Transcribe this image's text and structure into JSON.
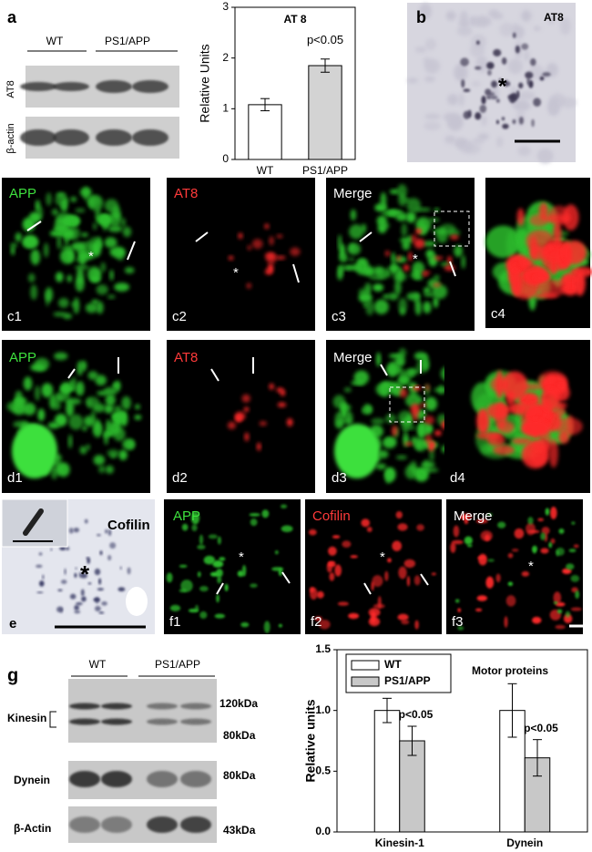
{
  "panel_a": {
    "label": "a",
    "groups": [
      "WT",
      "PS1/APP"
    ],
    "bands": [
      "AT8",
      "β-actin"
    ]
  },
  "panel_b": {
    "label": "b",
    "stain": "AT8",
    "marker": "*"
  },
  "panel_c": {
    "labels": [
      "c1",
      "c2",
      "c3",
      "c4"
    ],
    "stains": [
      "APP",
      "AT8",
      "Merge"
    ],
    "marker": "*"
  },
  "panel_d": {
    "labels": [
      "d1",
      "d2",
      "d3",
      "d4"
    ],
    "stains": [
      "APP",
      "AT8",
      "Merge"
    ]
  },
  "panel_e": {
    "label": "e",
    "stain": "Cofilin",
    "marker": "*"
  },
  "panel_f": {
    "labels": [
      "f1",
      "f2",
      "f3"
    ],
    "stains": [
      "APP",
      "Cofilin",
      "Merge"
    ],
    "marker": "*"
  },
  "panel_g": {
    "label": "g",
    "groups": [
      "WT",
      "PS1/APP"
    ],
    "bands": [
      "Kinesin",
      "Dynein",
      "β-Actin"
    ],
    "sizes": [
      "120kDa",
      "80kDa",
      "80kDa",
      "43kDa"
    ]
  },
  "chart_data": [
    {
      "type": "bar",
      "title": "AT 8",
      "ylabel": "Relative Units",
      "categories": [
        "WT",
        "PS1/APP"
      ],
      "values": [
        1.08,
        1.85
      ],
      "errors": [
        0.12,
        0.13
      ],
      "colors": [
        "#ffffff",
        "#d3d3d3"
      ],
      "annotations": [
        "p<0.05"
      ],
      "ylim": [
        0,
        3
      ],
      "yticks": [
        0,
        1,
        2,
        3
      ]
    },
    {
      "type": "bar",
      "title": "Motor proteins",
      "ylabel": "Relative units",
      "categories": [
        "Kinesin-1",
        "Dynein"
      ],
      "series": [
        {
          "name": "WT",
          "color": "#ffffff",
          "values": [
            1.0,
            1.0
          ],
          "errors": [
            0.1,
            0.22
          ]
        },
        {
          "name": "PS1/APP",
          "color": "#c8c8c8",
          "values": [
            0.75,
            0.61
          ],
          "errors": [
            0.12,
            0.15
          ]
        }
      ],
      "annotations": [
        "p<0.05",
        "p<0.05"
      ],
      "legend": "upper left",
      "ylim": [
        0,
        1.5
      ],
      "yticks": [
        {
          "value": 0,
          "label": "0.0"
        },
        0.5,
        {
          "value": 1,
          "label": "1.0"
        },
        1.5
      ]
    }
  ]
}
